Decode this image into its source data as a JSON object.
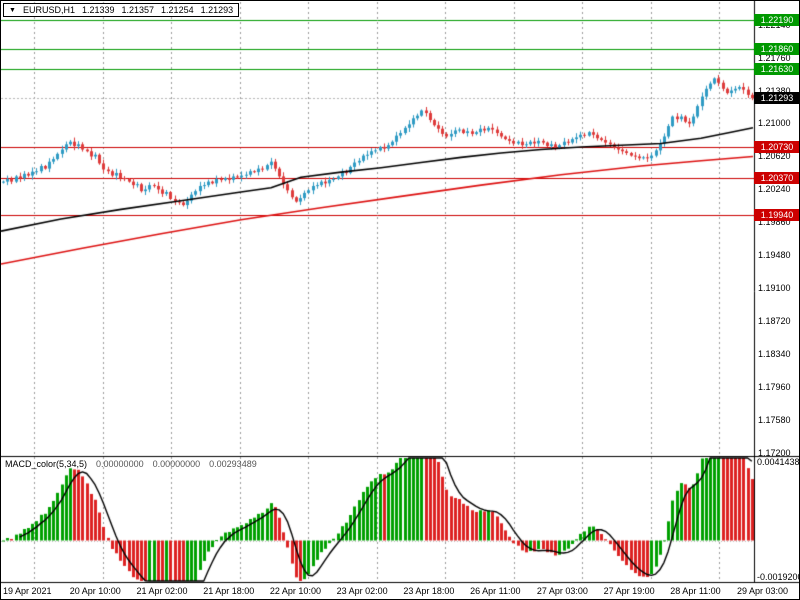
{
  "app": {
    "symbol_box": {
      "dropdown_icon": "▼",
      "symbol": "EURUSD,H1",
      "open": "1.21339",
      "high": "1.21357",
      "low": "1.21254",
      "close": "1.21293"
    }
  },
  "colors": {
    "bull": "#2f9bc4",
    "bear": "#de3b3b",
    "ma_fast": "#000000",
    "ma_slow": "#dd1111",
    "resistance": "#009900",
    "support": "#cc0000",
    "current_line": "#b5b5b5",
    "separator": "#9a9a9a",
    "hist_up": "#00a000",
    "hist_down": "#dd2222",
    "signal": "#000000"
  },
  "chart_data": [
    {
      "type": "candlestick",
      "title": "EURUSD,H1",
      "timeframe": "H1",
      "ylim": [
        1.1718,
        1.224
      ],
      "grid": false,
      "y_ticks": [
        "1.22140",
        "1.21760",
        "1.21380",
        "1.21000",
        "1.20620",
        "1.20240",
        "1.19860",
        "1.19480",
        "1.19100",
        "1.18720",
        "1.18340",
        "1.17960",
        "1.17580",
        "1.17200"
      ],
      "x_labels": [
        "19 Apr 2021",
        "20 Apr 10:00",
        "21 Apr 02:00",
        "21 Apr 18:00",
        "22 Apr 10:00",
        "23 Apr 02:00",
        "23 Apr 18:00",
        "26 Apr 11:00",
        "27 Apr 03:00",
        "27 Apr 19:00",
        "28 Apr 11:00",
        "29 Apr 03:00"
      ],
      "levels": {
        "resistance": [
          1.2219,
          1.2186,
          1.2163
        ],
        "resistance_labels": [
          "1.22190",
          "1.21860",
          "1.21630"
        ],
        "support": [
          1.2073,
          1.2037,
          1.1994
        ],
        "support_labels": [
          "1.20730",
          "1.20370",
          "1.19940"
        ],
        "current": 1.21293,
        "current_label": "1.21293"
      },
      "first_open": 1.2032,
      "closes": [
        1.2033,
        1.2036,
        1.2033,
        1.2039,
        1.2037,
        1.2042,
        1.204,
        1.20445,
        1.2045,
        1.2051,
        1.2048,
        1.2056,
        1.2059,
        1.2065,
        1.207,
        1.2076,
        1.2079,
        1.2074,
        1.2076,
        1.207,
        1.2068,
        1.2062,
        1.2064,
        1.2054,
        1.2047,
        1.2045,
        1.204,
        1.2043,
        1.2037,
        1.2036,
        1.2033,
        1.2029,
        1.203,
        1.2022,
        1.2024,
        1.2029,
        1.2028,
        1.2024,
        1.2019,
        1.2021,
        1.2013,
        1.201,
        1.2009,
        1.2006,
        1.2011,
        1.2018,
        1.2022,
        1.2028,
        1.2029,
        1.2033,
        1.2031,
        1.2036,
        1.2035,
        1.2037,
        1.2035,
        1.2039,
        1.2038,
        1.204,
        1.2041,
        1.2045,
        1.2044,
        1.2048,
        1.2047,
        1.2052,
        1.2056,
        1.2048,
        1.2039,
        1.203,
        1.2023,
        1.2015,
        1.201,
        1.2014,
        1.202,
        1.2023,
        1.2028,
        1.2029,
        1.2033,
        1.2031,
        1.2035,
        1.2036,
        1.2039,
        1.2044,
        1.2043,
        1.205,
        1.2055,
        1.2057,
        1.2063,
        1.2064,
        1.2068,
        1.2069,
        1.2073,
        1.2071,
        1.2075,
        1.2079,
        1.2086,
        1.2089,
        1.2095,
        1.2099,
        1.2106,
        1.2109,
        1.2115,
        1.2112,
        1.2104,
        1.2098,
        1.2094,
        1.2088,
        1.2085,
        1.2088,
        1.2092,
        1.2093,
        1.2089,
        1.2091,
        1.2088,
        1.209,
        1.2094,
        1.2092,
        1.2095,
        1.2093,
        1.2089,
        1.2085,
        1.2082,
        1.208,
        1.2077,
        1.2079,
        1.2075,
        1.2076,
        1.2079,
        1.2077,
        1.208,
        1.2078,
        1.2074,
        1.2076,
        1.2072,
        1.2075,
        1.2079,
        1.2078,
        1.2082,
        1.2084,
        1.2087,
        1.2086,
        1.209,
        1.2087,
        1.2083,
        1.2081,
        1.2078,
        1.2076,
        1.2072,
        1.207,
        1.2068,
        1.2066,
        1.2063,
        1.2062,
        1.206,
        1.2061,
        1.206,
        1.2063,
        1.2069,
        1.2077,
        1.2085,
        1.2097,
        1.2108,
        1.2105,
        1.2108,
        1.2102,
        1.21,
        1.2108,
        1.212,
        1.2131,
        1.214,
        1.2146,
        1.2152,
        1.2147,
        1.214,
        1.2135,
        1.2138,
        1.214,
        1.2142,
        1.2139,
        1.2133,
        1.21293
      ],
      "ma_fast_points": [
        [
          0,
          1.1976
        ],
        [
          60,
          1.199
        ],
        [
          120,
          1.2001
        ],
        [
          180,
          1.2011
        ],
        [
          240,
          1.2021
        ],
        [
          270,
          1.2026
        ],
        [
          300,
          1.2038
        ],
        [
          340,
          1.2044
        ],
        [
          380,
          1.2049
        ],
        [
          420,
          1.2055
        ],
        [
          460,
          1.2061
        ],
        [
          500,
          1.2066
        ],
        [
          540,
          1.207
        ],
        [
          580,
          1.2073
        ],
        [
          620,
          1.2075
        ],
        [
          660,
          1.2077
        ],
        [
          700,
          1.2083
        ],
        [
          730,
          1.209
        ],
        [
          752,
          1.2095
        ]
      ],
      "ma_slow_points": [
        [
          0,
          1.1938
        ],
        [
          80,
          1.1956
        ],
        [
          160,
          1.1973
        ],
        [
          240,
          1.1989
        ],
        [
          320,
          1.2003
        ],
        [
          400,
          1.2016
        ],
        [
          480,
          1.2029
        ],
        [
          560,
          1.2041
        ],
        [
          640,
          1.2051
        ],
        [
          700,
          1.2057
        ],
        [
          752,
          1.2062
        ]
      ]
    },
    {
      "type": "bar",
      "name": "MACD_color(5,34,5)",
      "values_label": [
        "0.00000000",
        "0.00000000",
        "0.00293489"
      ],
      "fast": 5,
      "slow": 34,
      "signal": 5,
      "derived_from": "chart_data[0].closes (histogram = EMA5-EMA34, black curve = 5-period signal)",
      "ylim": [
        -0.00215,
        0.00438
      ],
      "axis_values": [
        0.0041438,
        -0.00192
      ],
      "axis_labels": [
        "0.0041438",
        "-0.0019200"
      ]
    }
  ]
}
